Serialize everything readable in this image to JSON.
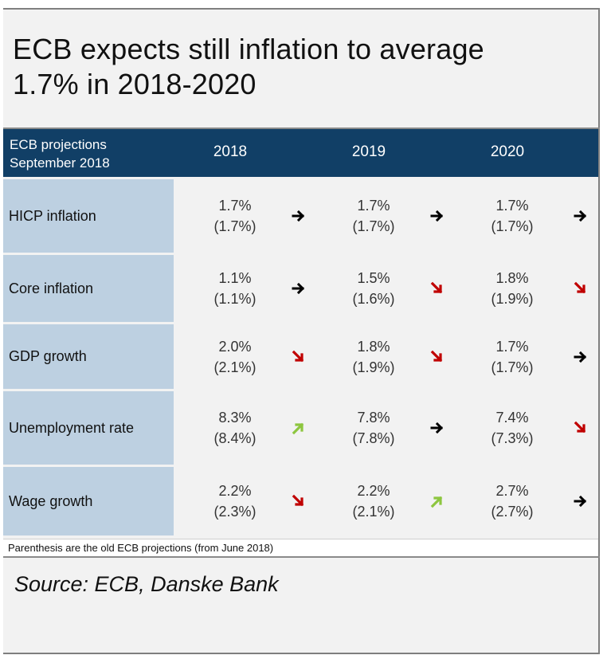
{
  "title_line1": "ECB expects still inflation to average",
  "title_line2": "1.7% in 2018-2020",
  "header": {
    "label_line1": "ECB projections",
    "label_line2": "September 2018",
    "years": [
      "2018",
      "2019",
      "2020"
    ]
  },
  "rows": [
    {
      "name": "HICP inflation",
      "cells": [
        {
          "value": "1.7%",
          "old": "(1.7%)",
          "trend": "flat"
        },
        {
          "value": "1.7%",
          "old": "(1.7%)",
          "trend": "flat"
        },
        {
          "value": "1.7%",
          "old": "(1.7%)",
          "trend": "flat"
        }
      ]
    },
    {
      "name": "Core inflation",
      "cells": [
        {
          "value": "1.1%",
          "old": "(1.1%)",
          "trend": "flat"
        },
        {
          "value": "1.5%",
          "old": "(1.6%)",
          "trend": "down"
        },
        {
          "value": "1.8%",
          "old": "(1.9%)",
          "trend": "down"
        }
      ]
    },
    {
      "name": "GDP growth",
      "cells": [
        {
          "value": "2.0%",
          "old": "(2.1%)",
          "trend": "down"
        },
        {
          "value": "1.8%",
          "old": "(1.9%)",
          "trend": "down"
        },
        {
          "value": "1.7%",
          "old": "(1.7%)",
          "trend": "flat"
        }
      ]
    },
    {
      "name": "Unemployment rate",
      "cells": [
        {
          "value": "8.3%",
          "old": "(8.4%)",
          "trend": "up"
        },
        {
          "value": "7.8%",
          "old": "(7.8%)",
          "trend": "flat"
        },
        {
          "value": "7.4%",
          "old": "(7.3%)",
          "trend": "down"
        }
      ]
    },
    {
      "name": "Wage growth",
      "cells": [
        {
          "value": "2.2%",
          "old": "(2.3%)",
          "trend": "down"
        },
        {
          "value": "2.2%",
          "old": "(2.1%)",
          "trend": "up"
        },
        {
          "value": "2.7%",
          "old": "(2.7%)",
          "trend": "flat"
        }
      ]
    }
  ],
  "note": "Parenthesis are the old ECB projections (from June 2018)",
  "source": "Source: ECB, Danske Bank",
  "colors": {
    "header_bg": "#113f66",
    "label_bg": "#bdd0e1",
    "down_arrow": "#c00000",
    "up_arrow": "#8dc63f",
    "flat_arrow": "#000000"
  },
  "arrow_icons": {
    "flat": "arrow-right-icon",
    "down": "arrow-down-right-icon",
    "up": "arrow-up-right-icon"
  }
}
